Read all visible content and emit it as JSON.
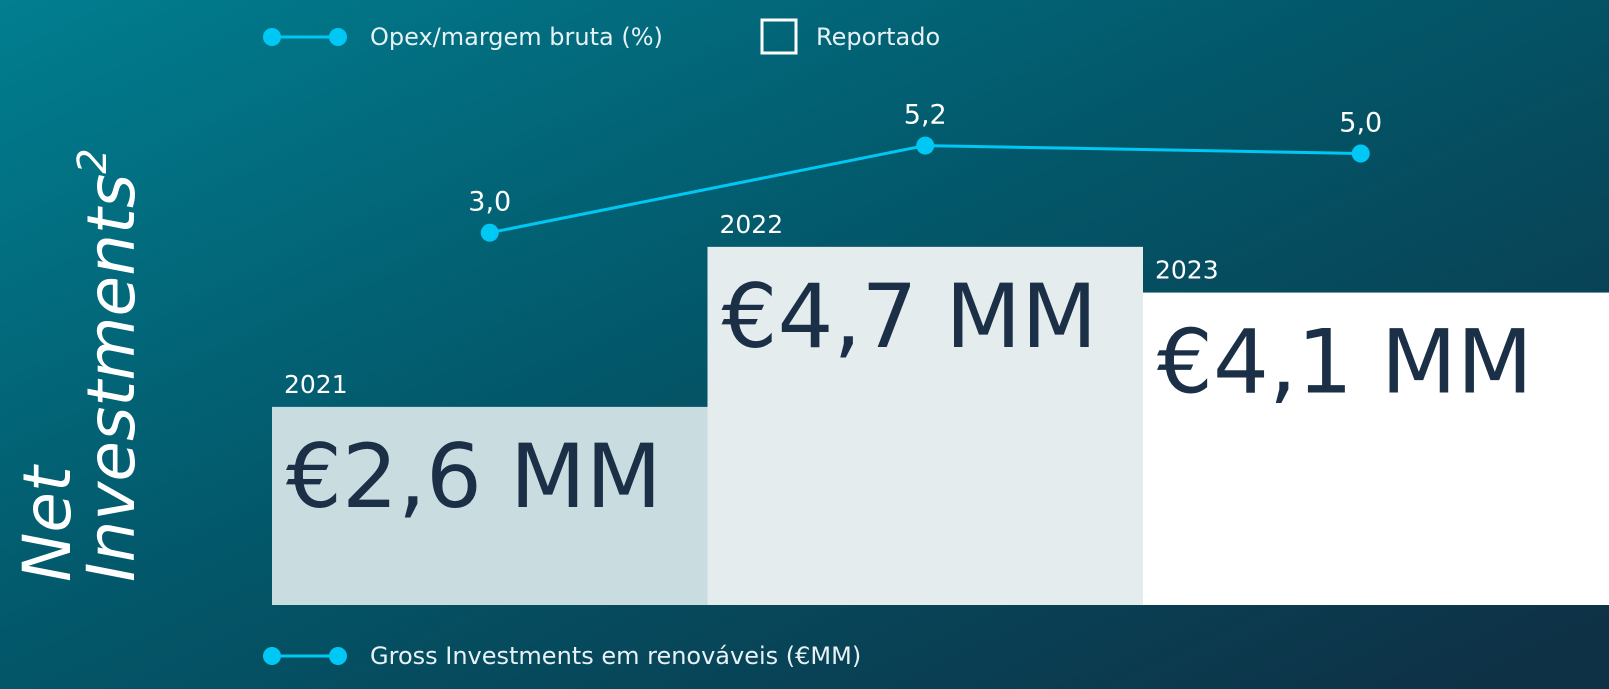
{
  "chart_data": {
    "type": "bar",
    "ylabel": [
      "Net",
      "Investments"
    ],
    "ylabel_sup": "2",
    "categories": [
      "2021",
      "2022",
      "2023"
    ],
    "ylim": [
      0,
      7.9
    ],
    "y2lim": [
      -6.4,
      8.8
    ],
    "reported_label": "Reportado",
    "series": [
      {
        "name": "Gross Investments em renováveis (€MM)",
        "type": "bar",
        "colors": [
          "#c9dde0",
          "#e4ecee",
          "#ffffff"
        ],
        "values": [
          2.6,
          4.7,
          4.1
        ],
        "value_labels": [
          "€2,6 MM",
          "€4,7 MM",
          "€4,1 MM"
        ]
      },
      {
        "name": "Opex/margem bruta (%)",
        "type": "line",
        "axis": "y2",
        "color": "#00c8f5",
        "values": [
          3.0,
          5.2,
          5.0
        ],
        "value_labels": [
          "3,0",
          "5,2",
          "5,0"
        ]
      }
    ]
  }
}
